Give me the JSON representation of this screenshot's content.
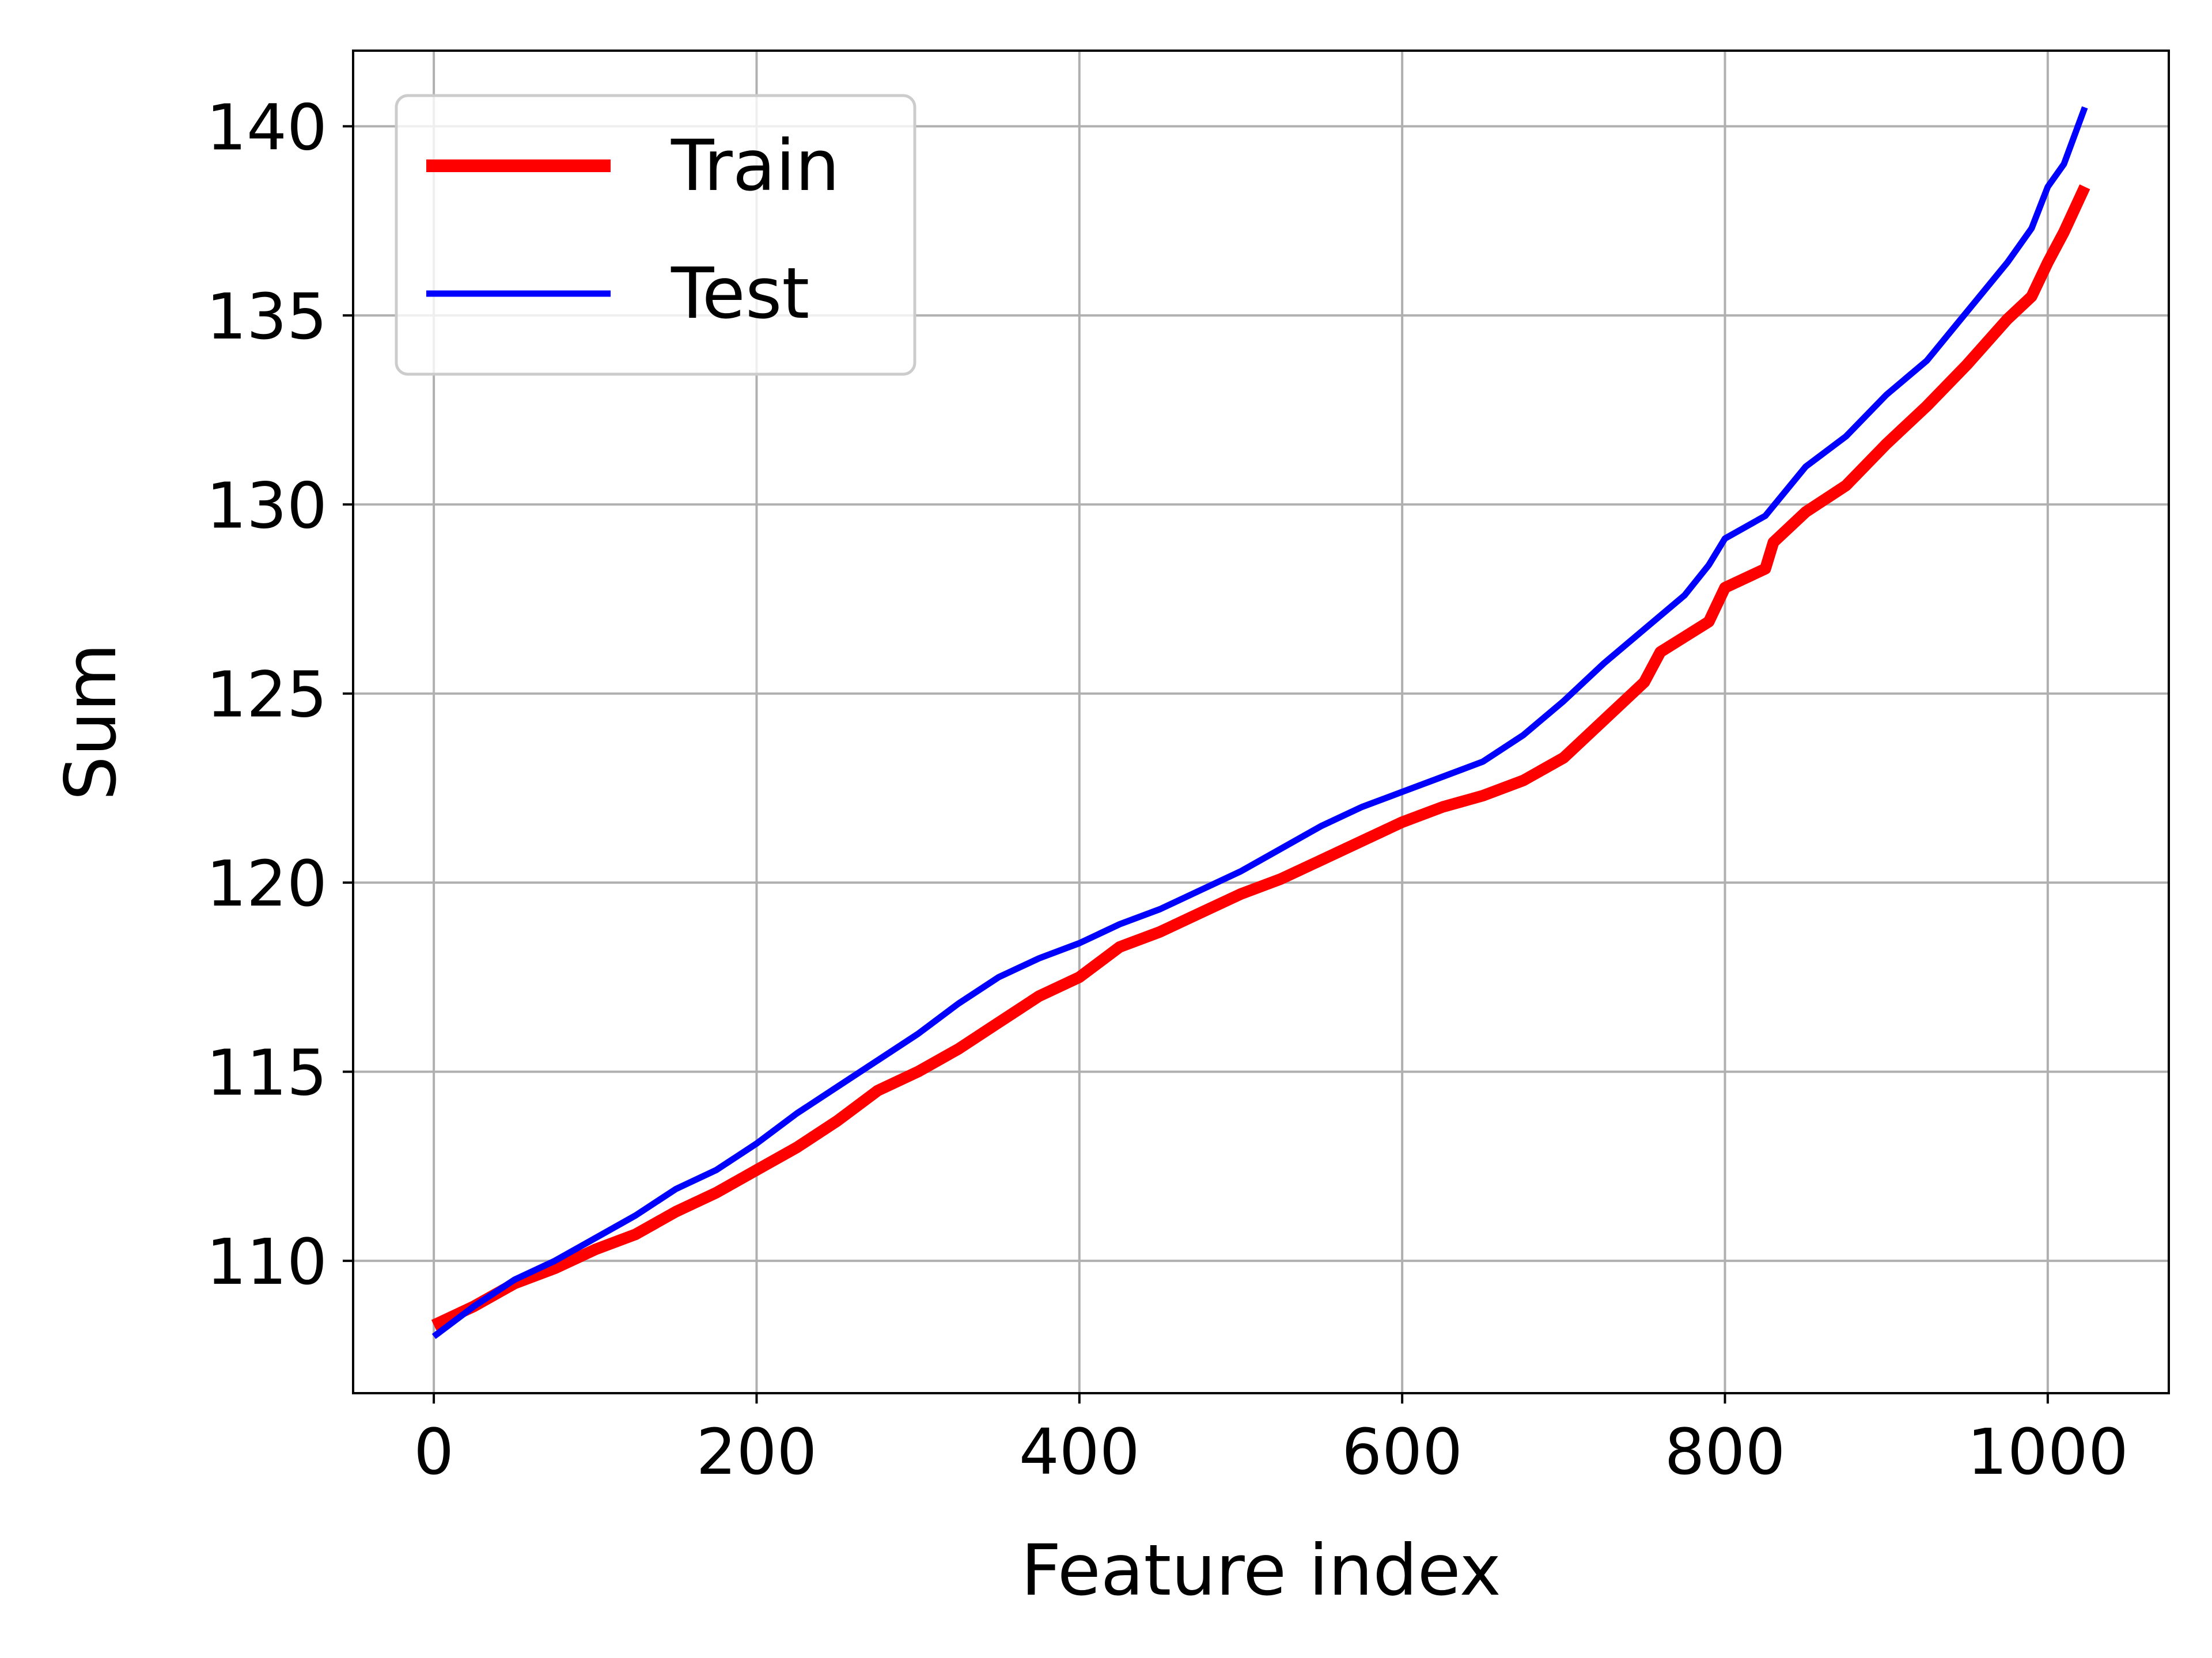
{
  "chart_data": {
    "type": "line",
    "xlabel": "Feature index",
    "ylabel": "Sum",
    "xlim": [
      -50,
      1075
    ],
    "ylim": [
      106.5,
      142
    ],
    "xticks": [
      0,
      200,
      400,
      600,
      800,
      1000
    ],
    "yticks": [
      110,
      115,
      120,
      125,
      130,
      135,
      140
    ],
    "grid": true,
    "legend_position": "top-left",
    "series": [
      {
        "name": "Train",
        "color": "#ff0000",
        "x": [
          0,
          25,
          50,
          75,
          100,
          125,
          150,
          175,
          200,
          225,
          250,
          275,
          300,
          325,
          350,
          375,
          400,
          425,
          450,
          475,
          500,
          525,
          550,
          575,
          600,
          625,
          650,
          675,
          700,
          725,
          750,
          760,
          775,
          790,
          800,
          825,
          830,
          850,
          875,
          900,
          925,
          950,
          975,
          990,
          1000,
          1010,
          1023
        ],
        "y": [
          108.3,
          108.8,
          109.4,
          109.8,
          110.3,
          110.7,
          111.3,
          111.8,
          112.4,
          113.0,
          113.7,
          114.5,
          115.0,
          115.6,
          116.3,
          117.0,
          117.5,
          118.3,
          118.7,
          119.2,
          119.7,
          120.1,
          120.6,
          121.1,
          121.6,
          122.0,
          122.3,
          122.7,
          123.3,
          124.3,
          125.3,
          126.1,
          126.5,
          126.9,
          127.8,
          128.3,
          129.0,
          129.8,
          130.5,
          131.6,
          132.6,
          133.7,
          134.9,
          135.5,
          136.4,
          137.2,
          138.4
        ]
      },
      {
        "name": "Test",
        "color": "#0000ff",
        "x": [
          0,
          25,
          50,
          75,
          100,
          125,
          150,
          175,
          200,
          225,
          250,
          275,
          300,
          325,
          350,
          375,
          400,
          425,
          450,
          475,
          500,
          525,
          550,
          575,
          600,
          625,
          650,
          675,
          700,
          725,
          750,
          775,
          790,
          800,
          825,
          850,
          875,
          900,
          925,
          950,
          975,
          990,
          1000,
          1010,
          1023
        ],
        "y": [
          108.0,
          108.8,
          109.5,
          110.0,
          110.6,
          111.2,
          111.9,
          112.4,
          113.1,
          113.9,
          114.6,
          115.3,
          116.0,
          116.8,
          117.5,
          118.0,
          118.4,
          118.9,
          119.3,
          119.8,
          120.3,
          120.9,
          121.5,
          122.0,
          122.4,
          122.8,
          123.2,
          123.9,
          124.8,
          125.8,
          126.7,
          127.6,
          128.4,
          129.1,
          129.7,
          131.0,
          131.8,
          132.9,
          133.8,
          135.1,
          136.4,
          137.3,
          138.4,
          139.0,
          140.5
        ]
      }
    ]
  }
}
